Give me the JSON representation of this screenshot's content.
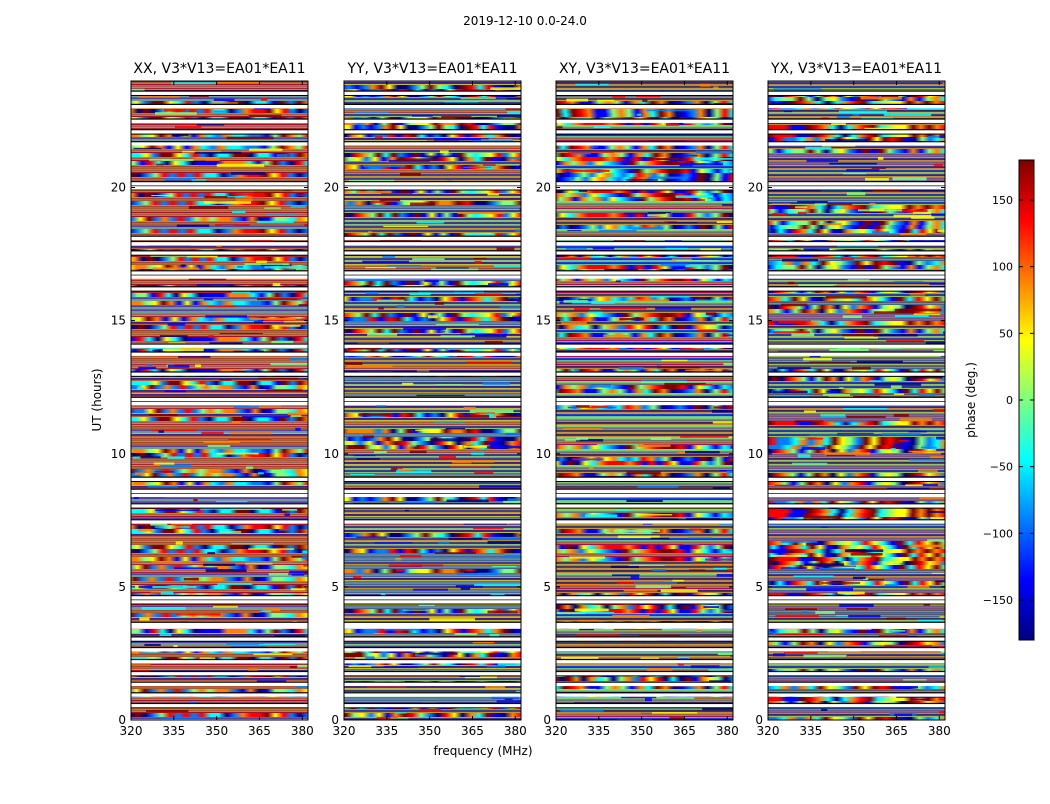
{
  "chart_data": {
    "type": "heatmap",
    "title": "2019-12-10 0.0-24.0",
    "xlabel": "frequency (MHz)",
    "ylabel": "UT (hours)",
    "xlim": [
      320,
      382
    ],
    "ylim": [
      0,
      24
    ],
    "xticks": [
      320,
      335,
      350,
      365,
      380
    ],
    "yticks": [
      0,
      5,
      10,
      15,
      20
    ],
    "panels": [
      {
        "title": "XX, V3*V13=EA01*EA11"
      },
      {
        "title": "YY, V3*V13=EA01*EA11"
      },
      {
        "title": "XY, V3*V13=EA01*EA11"
      },
      {
        "title": "YX, V3*V13=EA01*EA11"
      }
    ],
    "colorbar": {
      "label": "phase (deg.)",
      "range": [
        -180,
        180
      ],
      "ticks": [
        -150,
        -100,
        -50,
        0,
        50,
        100,
        150
      ],
      "tick_labels": [
        "−150",
        "−100",
        "−50",
        "0",
        "50",
        "100",
        "150"
      ],
      "colormap": [
        "#00007f",
        "#0000ff",
        "#007fff",
        "#00ffff",
        "#7fff7f",
        "#ffff00",
        "#ff7f00",
        "#ff0000",
        "#7f0000"
      ]
    },
    "flagged_ut_hours": [
      0.55,
      0.95,
      1.35,
      1.75,
      2.2,
      2.65,
      3.05,
      3.5,
      3.6,
      4.45,
      4.6,
      7.45,
      8.05,
      8.45,
      8.6,
      9.05,
      11.9,
      12.05,
      13.0,
      13.75,
      14.05,
      16.2,
      16.65,
      16.8,
      17.55,
      17.9,
      18.1,
      20.0,
      20.15,
      21.65,
      22.1,
      22.5,
      23.05,
      23.55
    ]
  }
}
